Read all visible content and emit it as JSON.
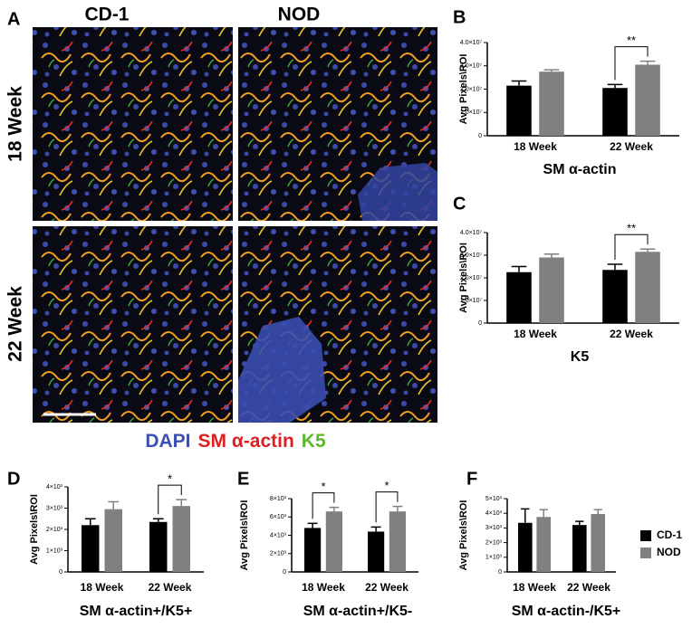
{
  "figure_a": {
    "label": "A",
    "columns": [
      "CD-1",
      "NOD"
    ],
    "rows": [
      "18 Week",
      "22 Week"
    ],
    "stain_legend": [
      {
        "text": "DAPI",
        "color": "#3c4fb4"
      },
      {
        "text": "SM α-actin",
        "color": "#e02020"
      },
      {
        "text": "K5",
        "color": "#5cb82e"
      }
    ]
  },
  "chart_data": [
    {
      "type": "bar",
      "panel": "B",
      "title": "SM α-actin",
      "y_label": "Avg Pixels\\ROI",
      "categories": [
        "18 Week",
        "22 Week"
      ],
      "series": [
        {
          "name": "CD-1",
          "color": "#000000",
          "values": [
            21500000,
            20500000
          ],
          "errors": [
            2000000,
            1500000
          ]
        },
        {
          "name": "NOD",
          "color": "#808080",
          "values": [
            27500000,
            30500000
          ],
          "errors": [
            800000,
            1500000
          ]
        }
      ],
      "ylim": [
        0,
        40000000
      ],
      "yticks": [
        0,
        {
          "value": 10000000,
          "label": "1.0×10⁷"
        },
        {
          "value": 20000000,
          "label": "2.0×10⁷"
        },
        {
          "value": 30000000,
          "label": "3.0×10⁷"
        },
        {
          "value": 40000000,
          "label": "4.0×10⁷"
        }
      ],
      "annotations": [
        {
          "text": "**",
          "category": 1
        }
      ],
      "legend": false
    },
    {
      "type": "bar",
      "panel": "C",
      "title": "K5",
      "y_label": "Avg Pixels\\ROI",
      "categories": [
        "18 Week",
        "22 Week"
      ],
      "series": [
        {
          "name": "CD-1",
          "color": "#000000",
          "values": [
            22500000,
            23500000
          ],
          "errors": [
            2500000,
            2500000
          ]
        },
        {
          "name": "NOD",
          "color": "#808080",
          "values": [
            29000000,
            31500000
          ],
          "errors": [
            1500000,
            1200000
          ]
        }
      ],
      "ylim": [
        0,
        40000000
      ],
      "yticks": [
        0,
        {
          "value": 10000000,
          "label": "1.0×10⁷"
        },
        {
          "value": 20000000,
          "label": "2.0×10⁷"
        },
        {
          "value": 30000000,
          "label": "3.0×10⁷"
        },
        {
          "value": 40000000,
          "label": "4.0×10⁷"
        }
      ],
      "annotations": [
        {
          "text": "**",
          "category": 1
        }
      ],
      "legend": false
    },
    {
      "type": "bar",
      "panel": "D",
      "title": "SM α-actin+/K5+",
      "y_label": "Avg Pixels\\ROI",
      "categories": [
        "18 Week",
        "22 Week"
      ],
      "series": [
        {
          "name": "CD-1",
          "color": "#000000",
          "values": [
            2200,
            2350
          ],
          "errors": [
            300,
            150
          ]
        },
        {
          "name": "NOD",
          "color": "#808080",
          "values": [
            2950,
            3100
          ],
          "errors": [
            350,
            300
          ]
        }
      ],
      "ylim": [
        0,
        4000
      ],
      "yticks": [
        0,
        {
          "value": 1000,
          "label": "1×10³"
        },
        {
          "value": 2000,
          "label": "2×10³"
        },
        {
          "value": 3000,
          "label": "3×10³"
        },
        {
          "value": 4000,
          "label": "4×10³"
        }
      ],
      "annotations": [
        {
          "text": "*",
          "category": 1
        }
      ],
      "legend": false
    },
    {
      "type": "bar",
      "panel": "E",
      "title": "SM α-actin+/K5-",
      "y_label": "Avg Pixels\\ROI",
      "categories": [
        "18 Week",
        "22 Week"
      ],
      "series": [
        {
          "name": "CD-1",
          "color": "#000000",
          "values": [
            4800,
            4400
          ],
          "errors": [
            500,
            500
          ]
        },
        {
          "name": "NOD",
          "color": "#808080",
          "values": [
            6600,
            6600
          ],
          "errors": [
            450,
            550
          ]
        }
      ],
      "ylim": [
        0,
        8000
      ],
      "yticks": [
        0,
        {
          "value": 2000,
          "label": "2×10³"
        },
        {
          "value": 4000,
          "label": "4×10³"
        },
        {
          "value": 6000,
          "label": "6×10³"
        },
        {
          "value": 8000,
          "label": "8×10³"
        }
      ],
      "annotations": [
        {
          "text": "*",
          "category": 0
        },
        {
          "text": "*",
          "category": 1
        }
      ],
      "legend": false
    },
    {
      "type": "bar",
      "panel": "F",
      "title": "SM α-actin-/K5+",
      "y_label": "Avg Pixels\\ROI",
      "categories": [
        "18 Week",
        "22 Week"
      ],
      "series": [
        {
          "name": "CD-1",
          "color": "#000000",
          "values": [
            3350,
            3200
          ],
          "errors": [
            950,
            250
          ]
        },
        {
          "name": "NOD",
          "color": "#808080",
          "values": [
            3750,
            3950
          ],
          "errors": [
            500,
            300
          ]
        }
      ],
      "ylim": [
        0,
        5000
      ],
      "yticks": [
        0,
        {
          "value": 1000,
          "label": "1×10³"
        },
        {
          "value": 2000,
          "label": "2×10³"
        },
        {
          "value": 3000,
          "label": "3×10³"
        },
        {
          "value": 4000,
          "label": "4×10³"
        },
        {
          "value": 5000,
          "label": "5×10³"
        }
      ],
      "annotations": [],
      "legend": true
    }
  ]
}
